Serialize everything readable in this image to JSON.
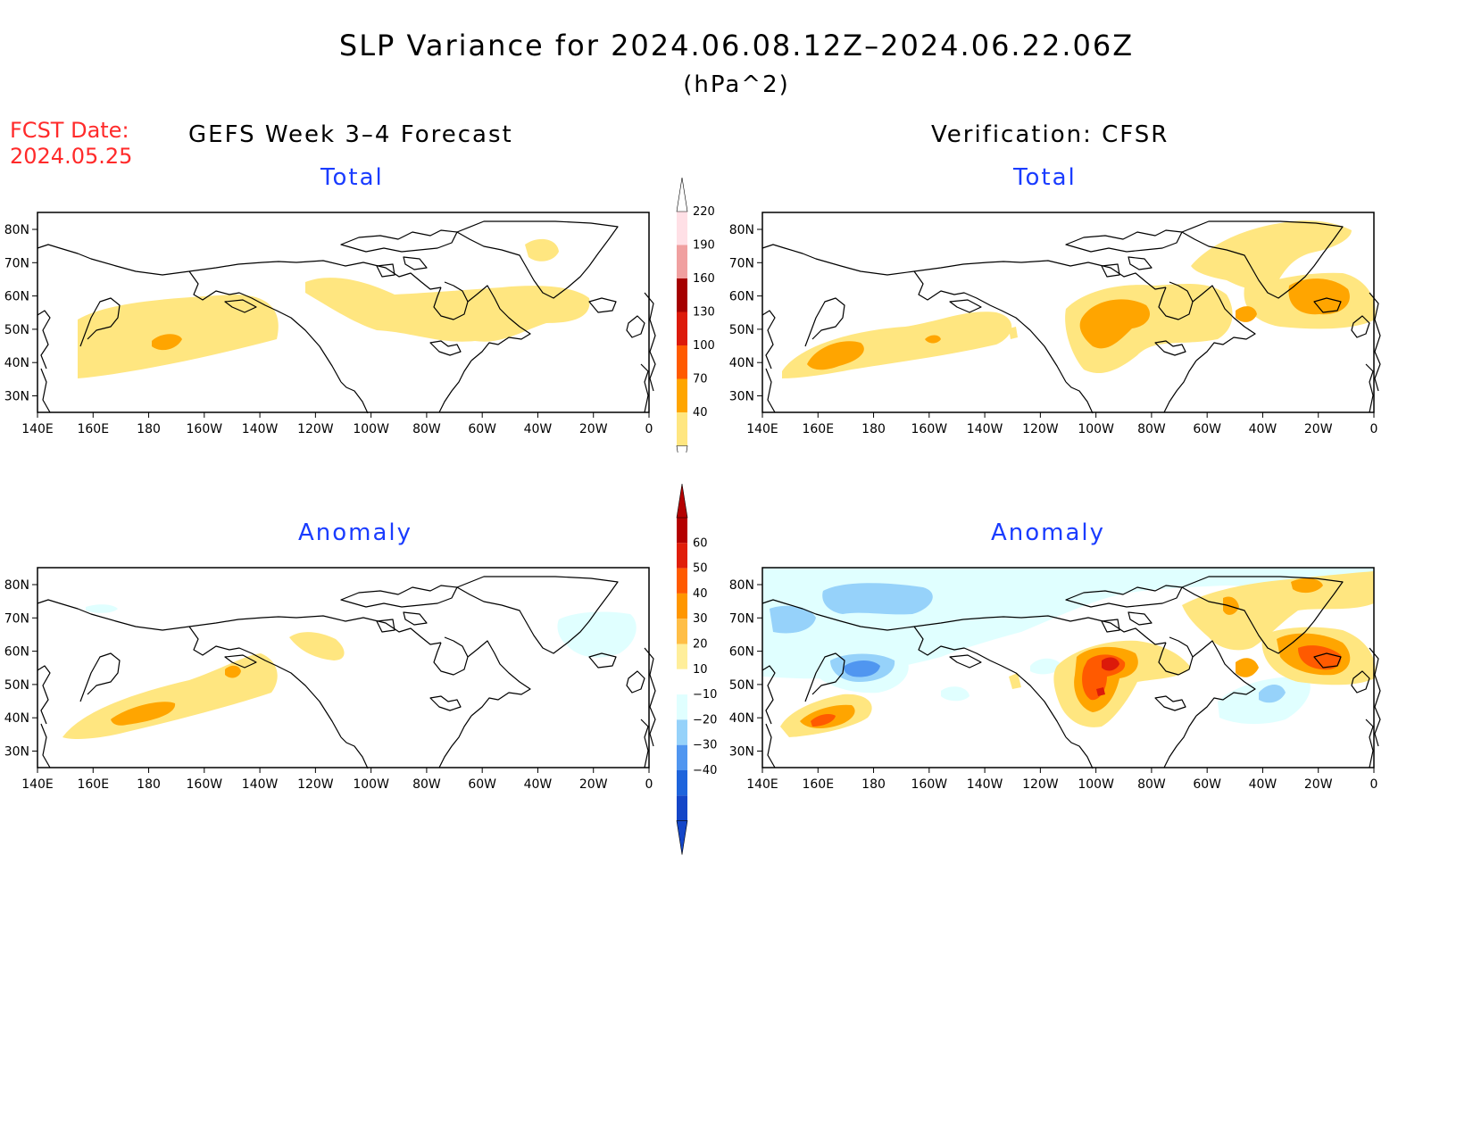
{
  "title": "SLP Variance for 2024.06.08.12Z–2024.06.22.06Z",
  "units": "(hPa^2)",
  "fcst_label": "FCST Date:",
  "fcst_date": "2024.05.25",
  "left_column_title": "GEFS Week 3–4 Forecast",
  "right_column_title": "Verification: CFSR",
  "panel_titles": {
    "forecast_total": "Total",
    "verification_total": "Total",
    "forecast_anomaly": "Anomaly",
    "verification_anomaly": "Anomaly"
  },
  "axis": {
    "x_ticks": [
      "140E",
      "160E",
      "180",
      "160W",
      "140W",
      "120W",
      "100W",
      "80W",
      "60W",
      "40W",
      "20W",
      "0"
    ],
    "y_ticks": [
      "80N",
      "70N",
      "60N",
      "50N",
      "40N",
      "30N"
    ]
  },
  "colorbar_total": {
    "labels": [
      "220",
      "190",
      "160",
      "130",
      "100",
      "70",
      "40"
    ],
    "colors": [
      "#ffe0e6",
      "#f0a0a0",
      "#a50000",
      "#dc1a0a",
      "#ff5a00",
      "#ffa500",
      "#ffe680"
    ]
  },
  "colorbar_anomaly": {
    "labels": [
      "60",
      "50",
      "40",
      "30",
      "20",
      "10",
      "−10",
      "−20",
      "−30",
      "−40"
    ],
    "colors": [
      "#b40000",
      "#e01e0a",
      "#ff5a00",
      "#ff9600",
      "#ffbe46",
      "#ffee9a",
      "#ffffff",
      "#e0ffff",
      "#96d2fa",
      "#5096f0",
      "#1e64dc",
      "#1446c8"
    ]
  },
  "fill_colors": {
    "lvl1": "#ffe680",
    "lvl2": "#ffa500",
    "lvl3": "#ff5a00",
    "lvl4": "#dc1a0a",
    "neg1": "#e0ffff",
    "neg2": "#96d2fa",
    "neg3": "#5096f0",
    "neg4": "#1e64dc",
    "coast": "#000000"
  }
}
